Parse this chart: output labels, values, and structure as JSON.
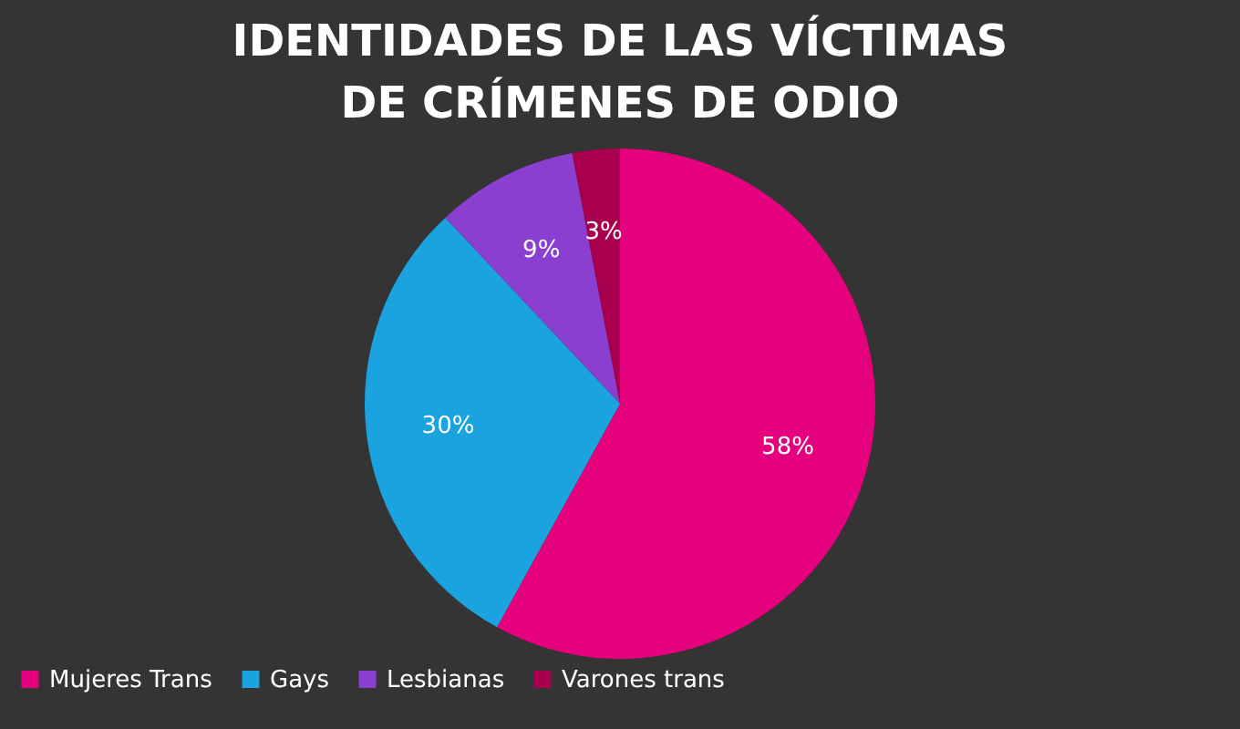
{
  "chart_data": {
    "type": "pie",
    "title": "IDENTIDADES DE LAS VÍCTIMAS DE CRÍMENES DE ODIO",
    "categories": [
      "Mujeres Trans",
      "Gays",
      "Lesbianas",
      "Varones trans"
    ],
    "values": [
      58,
      30,
      9,
      3
    ],
    "colors": [
      "#e5007d",
      "#1aa3de",
      "#8a3fd0",
      "#a8004f"
    ],
    "value_labels": [
      "58%",
      "30%",
      "9%",
      "3%"
    ],
    "legend": "bottom"
  }
}
